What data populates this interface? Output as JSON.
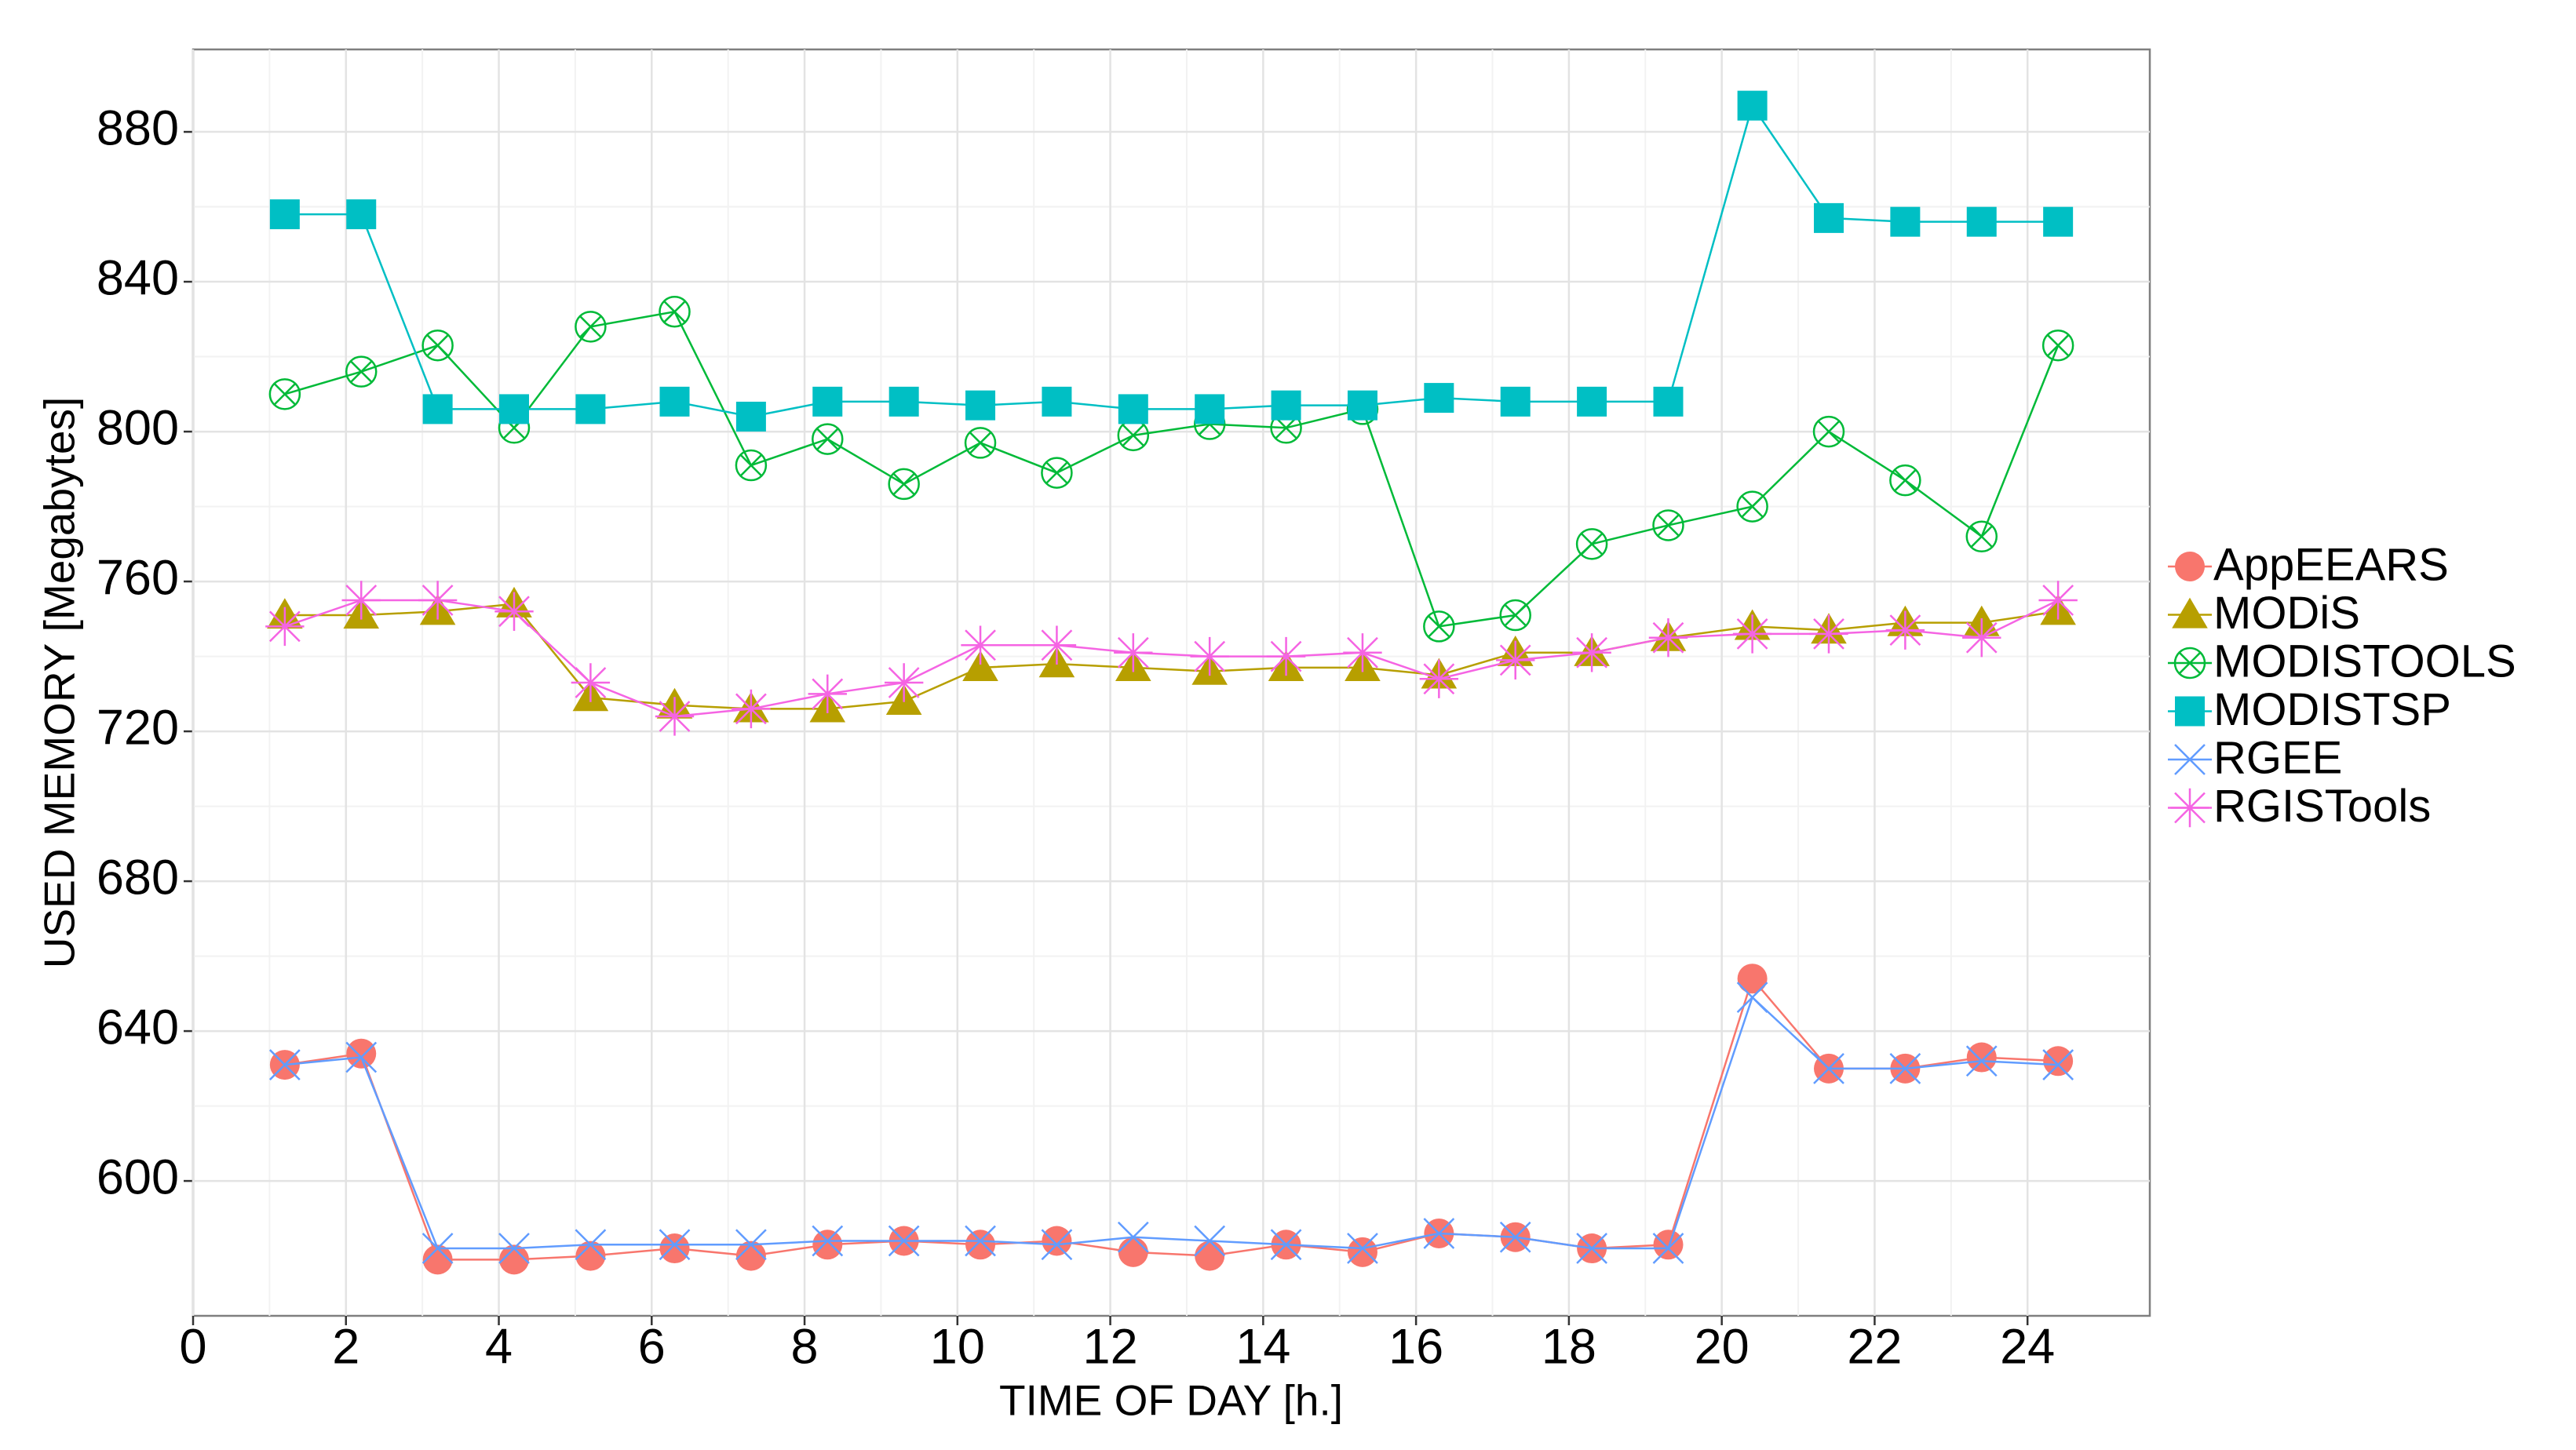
{
  "chart_data": {
    "type": "line",
    "x_label": "TIME OF DAY [h.]",
    "y_label": "USED MEMORY [Megabytes]",
    "x": [
      1.2,
      2.2,
      3.2,
      4.2,
      5.2,
      6.3,
      7.3,
      8.3,
      9.3,
      10.3,
      11.3,
      12.3,
      13.3,
      14.3,
      15.3,
      16.3,
      17.3,
      18.3,
      19.3,
      20.4,
      21.4,
      22.4,
      23.4,
      24.4
    ],
    "xlim": [
      0,
      25.6
    ],
    "xticks": [
      0,
      2,
      4,
      6,
      8,
      10,
      12,
      14,
      16,
      18,
      20,
      22,
      24
    ],
    "ylim": [
      564,
      902
    ],
    "yticks": [
      600,
      640,
      680,
      720,
      760,
      800,
      840,
      880
    ],
    "grid": true,
    "legend": "right",
    "series": [
      {
        "name": "AppEEARS",
        "color": "#F8766D",
        "marker": "circle",
        "values": [
          631,
          634,
          579,
          579,
          580,
          582,
          580,
          583,
          584,
          583,
          584,
          581,
          580,
          583,
          581,
          586,
          585,
          582,
          583,
          654,
          630,
          630,
          633,
          632
        ]
      },
      {
        "name": "MODiS",
        "color": "#B79F00",
        "marker": "triangle",
        "values": [
          751,
          751,
          752,
          754,
          729,
          727,
          726,
          726,
          728,
          737,
          738,
          737,
          736,
          737,
          737,
          735,
          741,
          741,
          745,
          748,
          747,
          749,
          749,
          752
        ]
      },
      {
        "name": "MODISTOOLS",
        "color": "#00BA38",
        "marker": "circle-x",
        "values": [
          810,
          816,
          823,
          801,
          828,
          832,
          791,
          798,
          786,
          797,
          789,
          799,
          802,
          801,
          806,
          748,
          751,
          770,
          775,
          780,
          800,
          787,
          772,
          823
        ]
      },
      {
        "name": "MODISTSP",
        "color": "#00BFC4",
        "marker": "square",
        "values": [
          858,
          858,
          806,
          806,
          806,
          808,
          804,
          808,
          808,
          807,
          808,
          806,
          806,
          807,
          807,
          809,
          808,
          808,
          808,
          887,
          857,
          856,
          856,
          856
        ]
      },
      {
        "name": "RGEE",
        "color": "#619CFF",
        "marker": "x",
        "values": [
          631,
          633,
          582,
          582,
          583,
          583,
          583,
          584,
          584,
          584,
          583,
          585,
          584,
          583,
          582,
          586,
          585,
          582,
          582,
          649,
          630,
          630,
          632,
          631
        ]
      },
      {
        "name": "RGISTools",
        "color": "#F564E3",
        "marker": "asterisk",
        "values": [
          748,
          755,
          755,
          752,
          733,
          724,
          726,
          730,
          733,
          743,
          743,
          741,
          740,
          740,
          741,
          734,
          739,
          741,
          745,
          746,
          746,
          747,
          745,
          755
        ]
      }
    ]
  }
}
